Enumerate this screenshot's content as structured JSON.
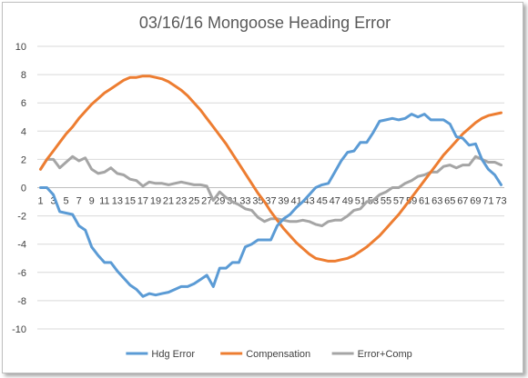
{
  "chart_data": {
    "type": "line",
    "title": "03/16/16 Mongoose Heading Error",
    "xlabel": "",
    "ylabel": "",
    "ylim": [
      -10,
      10
    ],
    "yticks": [
      -10,
      -8,
      -6,
      -4,
      -2,
      0,
      2,
      4,
      6,
      8,
      10
    ],
    "x": [
      1,
      2,
      3,
      4,
      5,
      6,
      7,
      8,
      9,
      10,
      11,
      12,
      13,
      14,
      15,
      16,
      17,
      18,
      19,
      20,
      21,
      22,
      23,
      24,
      25,
      26,
      27,
      28,
      29,
      30,
      31,
      32,
      33,
      34,
      35,
      36,
      37,
      38,
      39,
      40,
      41,
      42,
      43,
      44,
      45,
      46,
      47,
      48,
      49,
      50,
      51,
      52,
      53,
      54,
      55,
      56,
      57,
      58,
      59,
      60,
      61,
      62,
      63,
      64,
      65,
      66,
      67,
      68,
      69,
      70,
      71,
      72,
      73
    ],
    "xtick_labels": [
      "1",
      "3",
      "5",
      "7",
      "9",
      "11",
      "13",
      "15",
      "17",
      "19",
      "21",
      "23",
      "25",
      "27",
      "29",
      "31",
      "33",
      "35",
      "37",
      "39",
      "41",
      "43",
      "45",
      "47",
      "49",
      "51",
      "53",
      "55",
      "57",
      "59",
      "61",
      "63",
      "65",
      "67",
      "69",
      "71",
      "73"
    ],
    "grid": true,
    "legend_position": "bottom",
    "series": [
      {
        "name": "Hdg Error",
        "color": "#5b9bd5",
        "values": [
          0.0,
          0.0,
          -0.5,
          -1.7,
          -1.8,
          -1.9,
          -2.7,
          -3.0,
          -4.2,
          -4.8,
          -5.3,
          -5.3,
          -5.9,
          -6.4,
          -6.9,
          -7.2,
          -7.7,
          -7.5,
          -7.6,
          -7.5,
          -7.4,
          -7.2,
          -7.0,
          -7.0,
          -6.8,
          -6.5,
          -6.2,
          -7.0,
          -5.7,
          -5.7,
          -5.3,
          -5.3,
          -4.2,
          -4.0,
          -3.7,
          -3.7,
          -3.7,
          -2.7,
          -2.2,
          -1.9,
          -1.4,
          -1.0,
          -0.5,
          0.0,
          0.2,
          0.3,
          1.1,
          1.9,
          2.5,
          2.6,
          3.2,
          3.2,
          3.9,
          4.7,
          4.8,
          4.9,
          4.8,
          4.9,
          5.2,
          5.0,
          5.2,
          4.8,
          4.8,
          4.8,
          4.5,
          3.6,
          3.5,
          3.0,
          3.1,
          2.0,
          1.3,
          0.9,
          0.2
        ]
      },
      {
        "name": "Compensation",
        "color": "#ed7d31",
        "values": [
          1.3,
          2.0,
          2.6,
          3.2,
          3.8,
          4.3,
          4.9,
          5.4,
          5.9,
          6.3,
          6.7,
          7.0,
          7.3,
          7.6,
          7.8,
          7.8,
          7.9,
          7.9,
          7.8,
          7.7,
          7.5,
          7.2,
          6.9,
          6.5,
          6.0,
          5.5,
          4.9,
          4.3,
          3.7,
          3.1,
          2.4,
          1.7,
          1.0,
          0.3,
          -0.4,
          -1.0,
          -1.7,
          -2.3,
          -2.9,
          -3.4,
          -3.9,
          -4.3,
          -4.7,
          -5.0,
          -5.1,
          -5.2,
          -5.2,
          -5.1,
          -5.0,
          -4.8,
          -4.5,
          -4.2,
          -3.8,
          -3.4,
          -2.9,
          -2.4,
          -1.9,
          -1.3,
          -0.7,
          -0.1,
          0.5,
          1.1,
          1.7,
          2.3,
          2.8,
          3.3,
          3.8,
          4.2,
          4.6,
          4.9,
          5.1,
          5.2,
          5.3
        ]
      },
      {
        "name": "Error+Comp",
        "color": "#a5a5a5",
        "values": [
          1.3,
          2.0,
          2.0,
          1.4,
          1.8,
          2.2,
          1.9,
          2.1,
          1.3,
          1.0,
          1.1,
          1.4,
          1.0,
          0.9,
          0.6,
          0.5,
          0.1,
          0.4,
          0.3,
          0.3,
          0.2,
          0.3,
          0.4,
          0.3,
          0.2,
          0.2,
          0.1,
          -0.9,
          -0.3,
          -0.7,
          -1.0,
          -1.2,
          -1.5,
          -1.6,
          -2.1,
          -2.4,
          -2.2,
          -2.2,
          -2.3,
          -2.4,
          -2.4,
          -2.3,
          -2.4,
          -2.6,
          -2.7,
          -2.4,
          -2.3,
          -2.3,
          -2.0,
          -1.6,
          -1.5,
          -1.0,
          -0.9,
          -0.5,
          -0.3,
          0.0,
          0.0,
          0.3,
          0.5,
          0.8,
          0.9,
          1.1,
          1.1,
          1.5,
          1.6,
          1.4,
          1.6,
          1.6,
          2.2,
          2.0,
          1.8,
          1.8,
          1.6
        ]
      }
    ]
  }
}
